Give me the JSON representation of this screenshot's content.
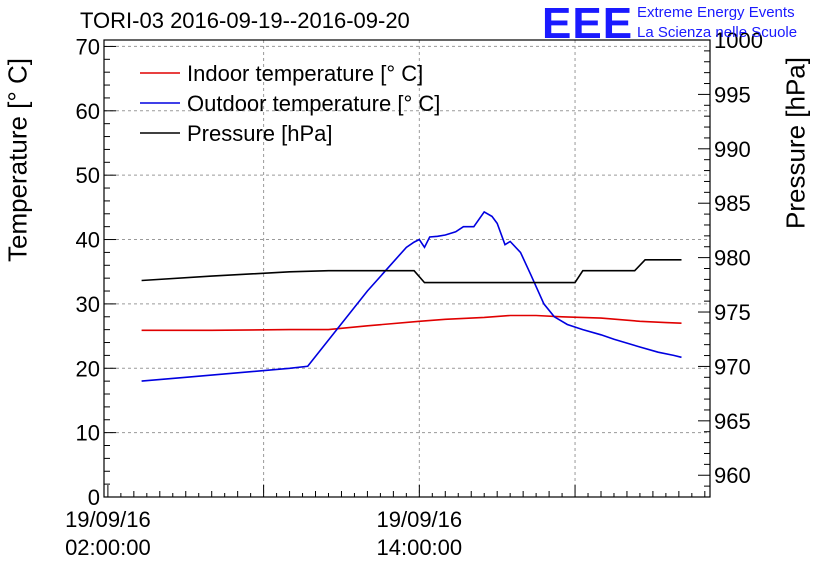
{
  "chart_data": {
    "type": "line",
    "title": "TORI-03 2016-09-19--2016-09-20",
    "logo": {
      "text": "EEE",
      "line1": "Extreme Energy Events",
      "line2": "La Scienza nelle Scuole"
    },
    "ylabel_left": "Temperature [° C]",
    "ylabel_right": "Pressure [hPa]",
    "ylim_left": [
      0,
      71
    ],
    "ylim_right": [
      958,
      1000
    ],
    "yticks_left": [
      0,
      10,
      20,
      30,
      40,
      50,
      60,
      70
    ],
    "yticks_right": [
      960,
      965,
      970,
      975,
      980,
      985,
      990,
      995,
      1000
    ],
    "x_hours_range": [
      1.85,
      25.2
    ],
    "x_major_ticks": [
      {
        "hour": 2,
        "line1": "19/09/16",
        "line2": "02:00:00"
      },
      {
        "hour": 14,
        "line1": "19/09/16",
        "line2": "14:00:00"
      }
    ],
    "grid": true,
    "legend_position": "top-left",
    "series": [
      {
        "name": "Indoor temperature [° C]",
        "axis": "left",
        "color": "#e00000",
        "x": [
          3.3,
          6,
          9,
          10.5,
          12,
          14,
          15,
          16.5,
          17.5,
          18.5,
          19.5,
          21,
          22.5,
          23.5,
          24.1
        ],
        "y": [
          25.9,
          25.9,
          26.0,
          26.0,
          26.6,
          27.3,
          27.6,
          27.9,
          28.2,
          28.2,
          28.0,
          27.8,
          27.3,
          27.1,
          27.0
        ]
      },
      {
        "name": "Outdoor temperature [° C]",
        "axis": "left",
        "color": "#0000e0",
        "x": [
          3.3,
          5,
          7,
          9,
          9.7,
          12,
          13.5,
          13.8,
          14,
          14.2,
          14.4,
          14.7,
          15,
          15.4,
          15.7,
          16.1,
          16.5,
          16.8,
          17,
          17.3,
          17.5,
          17.9,
          18.3,
          18.8,
          19.2,
          19.7,
          20.3,
          21,
          21.5,
          22.5,
          23.2,
          23.8,
          24.1
        ],
        "y": [
          18.0,
          18.6,
          19.3,
          20.0,
          20.3,
          32.0,
          38.8,
          39.6,
          40.0,
          38.8,
          40.4,
          40.5,
          40.7,
          41.2,
          42.0,
          42.0,
          44.3,
          43.6,
          42.5,
          39.2,
          39.7,
          38.0,
          34.5,
          30.0,
          28.0,
          26.8,
          26.0,
          25.2,
          24.5,
          23.3,
          22.5,
          22.0,
          21.7
        ]
      },
      {
        "name": "Pressure [hPa]",
        "axis": "right",
        "color": "#000000",
        "x": [
          3.3,
          6,
          9,
          10.5,
          12,
          13.8,
          14.2,
          16,
          18,
          18.4,
          18.7,
          20,
          20.3,
          20.8,
          22,
          22.3,
          22.7,
          24.1
        ],
        "y": [
          977.9,
          978.3,
          978.7,
          978.8,
          978.8,
          978.8,
          977.7,
          977.7,
          977.7,
          977.7,
          977.7,
          977.7,
          978.8,
          978.8,
          978.8,
          978.8,
          979.8,
          979.8
        ]
      }
    ]
  }
}
